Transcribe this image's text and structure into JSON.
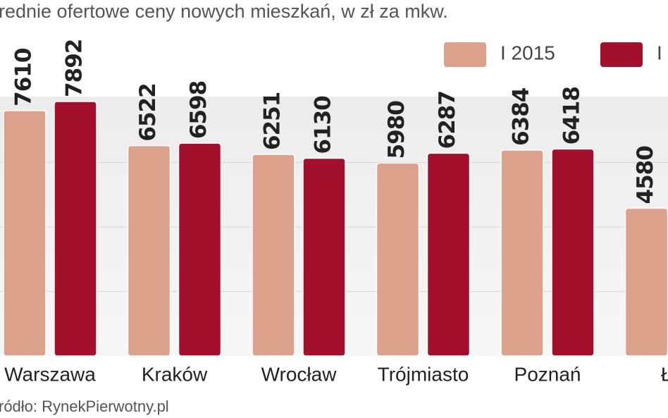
{
  "chart_data": {
    "type": "bar",
    "title": "rednie ofertowe ceny nowych mieszkań,  w zł za mkw.",
    "source": "ródło: RynekPierwotny.pl",
    "categories": [
      "Warszawa",
      "Kraków",
      "Wrocław",
      "Trójmiasto",
      "Poznań",
      "Łó"
    ],
    "series": [
      {
        "name": "I 2015",
        "color": "#dba18b",
        "values": [
          7610,
          6522,
          6251,
          5980,
          6384,
          4580
        ]
      },
      {
        "name": "I",
        "color": "#a2102b",
        "values": [
          7892,
          6598,
          6130,
          6287,
          6418,
          null
        ]
      }
    ],
    "ylim": [
      0,
      8000
    ],
    "yticks": [
      2000,
      4000,
      6000
    ],
    "grid": true
  }
}
